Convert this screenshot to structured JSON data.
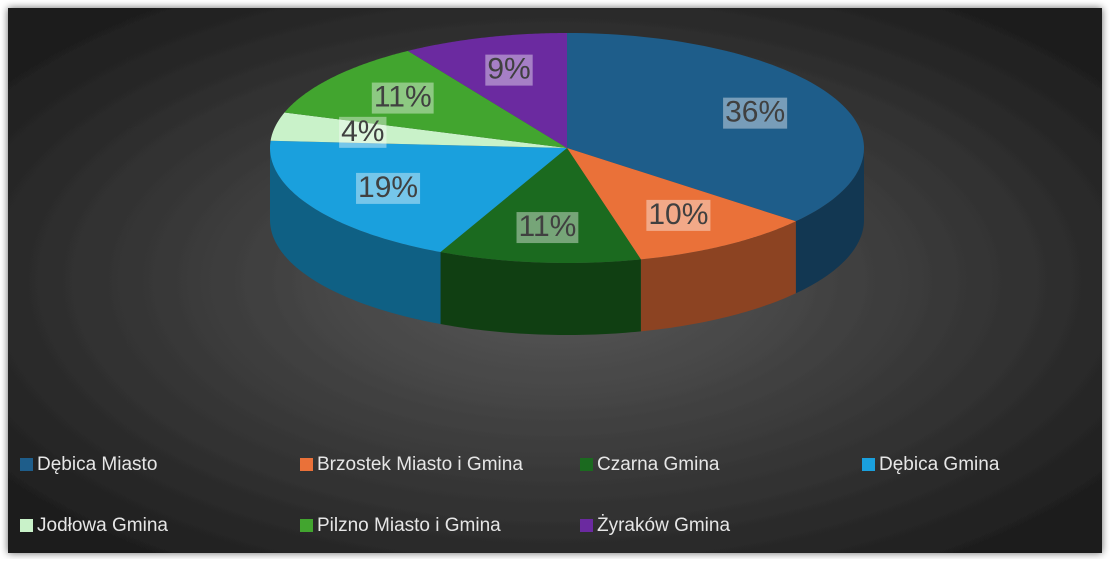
{
  "chart_data": {
    "type": "pie3d",
    "categories": [
      "Dębica Miasto",
      "Brzostek Miasto i Gmina",
      "Czarna Gmina",
      "Dębica Gmina",
      "Jodłowa Gmina",
      "Pilzno Miasto i Gmina",
      "Żyraków Gmina"
    ],
    "values": [
      36,
      10,
      11,
      19,
      4,
      11,
      9
    ],
    "value_labels": [
      "36%",
      "10%",
      "11%",
      "19%",
      "4%",
      "11%",
      "9%"
    ],
    "colors": [
      "#1e5d8a",
      "#ea7139",
      "#1b6a1f",
      "#1aa0dd",
      "#c9f2c9",
      "#42a52f",
      "#6b2aa0"
    ],
    "legend": "bottom"
  }
}
